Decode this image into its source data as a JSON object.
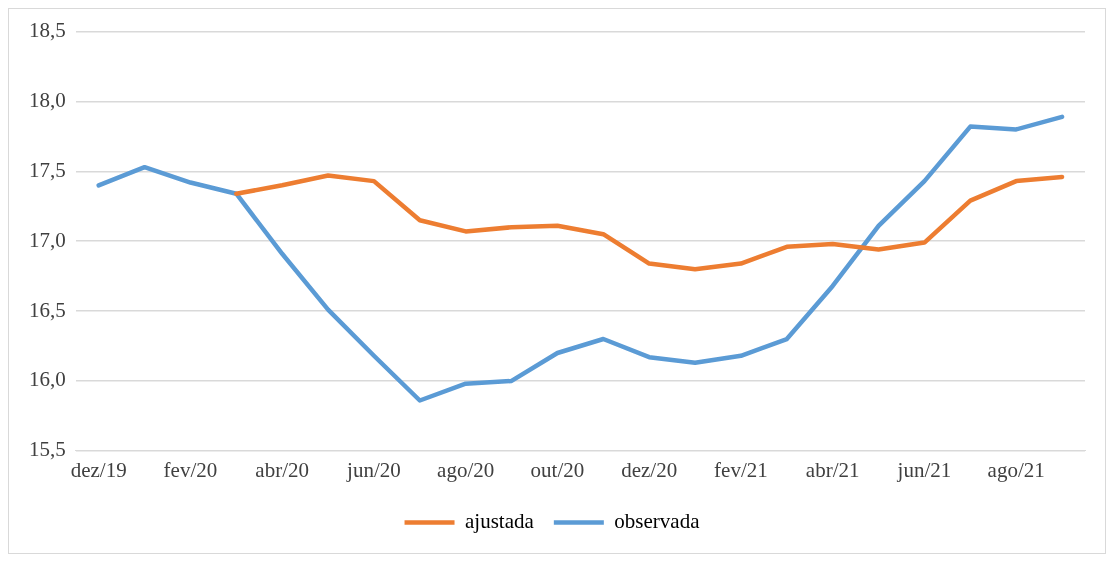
{
  "chart_data": {
    "type": "line",
    "categories": [
      "dez/19",
      null,
      "fev/20",
      null,
      "abr/20",
      null,
      "jun/20",
      null,
      "ago/20",
      null,
      "out/20",
      null,
      "dez/20",
      null,
      "fev/21",
      null,
      "abr/21",
      null,
      "jun/21",
      null,
      "ago/21",
      null
    ],
    "series": [
      {
        "name": "ajustada",
        "color": "#ed7d31",
        "values": [
          null,
          null,
          null,
          17.34,
          17.4,
          17.47,
          17.43,
          17.15,
          17.07,
          17.1,
          17.11,
          17.05,
          16.84,
          16.8,
          16.84,
          16.96,
          16.98,
          16.94,
          16.99,
          17.29,
          17.43,
          17.46
        ]
      },
      {
        "name": "observada",
        "color": "#5b9bd5",
        "values": [
          17.4,
          17.53,
          17.42,
          17.34,
          16.91,
          16.51,
          16.18,
          15.86,
          15.98,
          16.0,
          16.2,
          16.3,
          16.17,
          16.13,
          16.18,
          16.3,
          16.68,
          17.11,
          17.43,
          17.82,
          17.8,
          17.89
        ]
      }
    ],
    "ylim": [
      15.5,
      18.5
    ],
    "yticks": [
      {
        "value": 15.5,
        "label": "15,5"
      },
      {
        "value": 16,
        "label": "16,0"
      },
      {
        "value": 16.5,
        "label": "16,5"
      },
      {
        "value": 17,
        "label": "17,0"
      },
      {
        "value": 17.5,
        "label": "17,5"
      },
      {
        "value": 18,
        "label": "18,0"
      },
      {
        "value": 18.5,
        "label": "18,5"
      }
    ],
    "grid": "y",
    "legend": "bottom",
    "marker": "none",
    "line_style": "solid"
  }
}
